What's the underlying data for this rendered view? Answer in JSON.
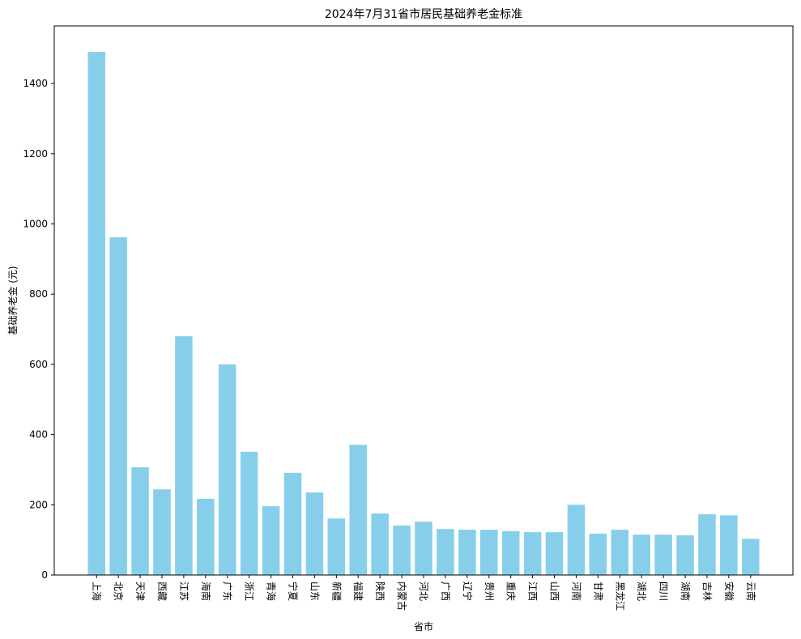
{
  "chart_data": {
    "type": "bar",
    "title": "2024年7月31省市居民基础养老金标准",
    "xlabel": "省市",
    "ylabel": "基础养老金 (元)",
    "categories": [
      "上海",
      "北京",
      "天津",
      "西藏",
      "江苏",
      "海南",
      "广东",
      "浙江",
      "青海",
      "宁夏",
      "山东",
      "新疆",
      "福建",
      "陕西",
      "内蒙古",
      "河北",
      "广西",
      "辽宁",
      "贵州",
      "重庆",
      "江西",
      "山西",
      "河南",
      "甘肃",
      "黑龙江",
      "湖北",
      "四川",
      "湖南",
      "吉林",
      "安徽",
      "云南"
    ],
    "values": [
      1490,
      962,
      307,
      244,
      680,
      217,
      600,
      351,
      196,
      291,
      235,
      161,
      371,
      175,
      141,
      152,
      131,
      129,
      129,
      125,
      122,
      122,
      200,
      118,
      129,
      115,
      115,
      113,
      173,
      170,
      103
    ],
    "color": "#87ceeb",
    "ylim": [
      0,
      1564
    ],
    "yticks": [
      0,
      200,
      400,
      600,
      800,
      1000,
      1200,
      1400
    ],
    "grid": false
  }
}
